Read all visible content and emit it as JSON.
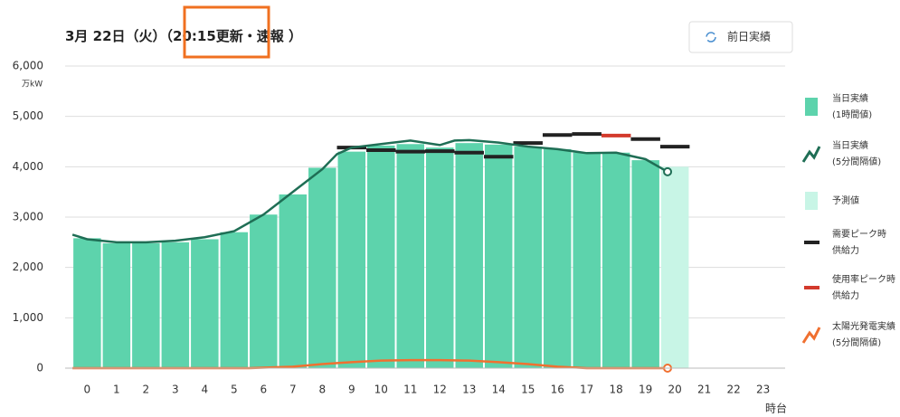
{
  "header": {
    "date": "3月 22日（火）（",
    "updated": "20:15更新",
    "suffix": "・速報 ）"
  },
  "button": "前日実績",
  "chart_data": {
    "type": "bar",
    "y_unit": "万kW",
    "x_label": "時台",
    "categories": [
      "0",
      "1",
      "2",
      "3",
      "4",
      "5",
      "6",
      "7",
      "8",
      "9",
      "10",
      "11",
      "12",
      "13",
      "14",
      "15",
      "16",
      "17",
      "18",
      "19",
      "20",
      "21",
      "22",
      "23"
    ],
    "xlim": [
      -0.75,
      23.75
    ],
    "ylim": [
      0,
      6000
    ],
    "yticks": [
      0,
      {
        "value": 1000,
        "label": "1,000"
      },
      {
        "value": 2000,
        "label": "2,000"
      },
      {
        "value": 3000,
        "label": "3,000"
      },
      {
        "value": 4000,
        "label": "4,000"
      },
      {
        "value": 5000,
        "label": "5,000"
      },
      {
        "value": 6000,
        "label": "6,000"
      }
    ],
    "grid": true,
    "series": [
      {
        "name": "当日実績",
        "note": "(1時間値)",
        "kind": "bar",
        "color": "#5dd3ac",
        "values": [
          2580,
          2480,
          2480,
          2500,
          2560,
          2700,
          3050,
          3450,
          3980,
          4300,
          4420,
          4450,
          4380,
          4470,
          4440,
          4400,
          4350,
          4280,
          4280,
          4130,
          null,
          null,
          null,
          null
        ]
      },
      {
        "name": "当日実績",
        "note": "(5分間隔値)",
        "kind": "line",
        "color": "#1f6e55",
        "x": [
          -0.5,
          0,
          1,
          2,
          3,
          4,
          5,
          6,
          7,
          8,
          8.5,
          9,
          10,
          11,
          12,
          12.5,
          13,
          14,
          15,
          16,
          17,
          18,
          19,
          19.75
        ],
        "values": [
          2650,
          2560,
          2500,
          2500,
          2530,
          2600,
          2720,
          3050,
          3500,
          3950,
          4250,
          4380,
          4450,
          4520,
          4430,
          4520,
          4530,
          4480,
          4400,
          4350,
          4270,
          4280,
          4150,
          3900
        ]
      },
      {
        "name": "予測値",
        "kind": "bar",
        "color": "#c8f5e6",
        "values": [
          null,
          null,
          null,
          null,
          null,
          null,
          null,
          null,
          null,
          null,
          null,
          null,
          null,
          null,
          null,
          null,
          null,
          null,
          null,
          null,
          4000,
          null,
          null,
          null
        ]
      },
      {
        "name": "需要ピーク時",
        "note": "供給力",
        "kind": "dash",
        "color": "#222222",
        "values": [
          null,
          null,
          null,
          null,
          null,
          null,
          null,
          null,
          null,
          4380,
          4330,
          4300,
          4310,
          4280,
          4200,
          4470,
          4630,
          4650,
          null,
          4550,
          4400,
          null,
          null,
          null
        ]
      },
      {
        "name": "使用率ピーク時",
        "note": "供給力",
        "kind": "dash",
        "color": "#d33a2c",
        "values": [
          null,
          null,
          null,
          null,
          null,
          null,
          null,
          null,
          null,
          null,
          null,
          null,
          null,
          null,
          null,
          null,
          null,
          null,
          4620,
          null,
          null,
          null,
          null,
          null
        ]
      },
      {
        "name": "太陽光発電実績",
        "note": "(5分間隔値)",
        "kind": "line",
        "color": "#f07030",
        "x": [
          -0.5,
          5.5,
          7,
          8,
          9,
          10,
          11,
          12,
          13,
          14,
          15,
          16,
          17,
          19.75
        ],
        "values": [
          0,
          0,
          30,
          80,
          120,
          150,
          160,
          160,
          150,
          120,
          80,
          30,
          0,
          0
        ]
      }
    ]
  }
}
